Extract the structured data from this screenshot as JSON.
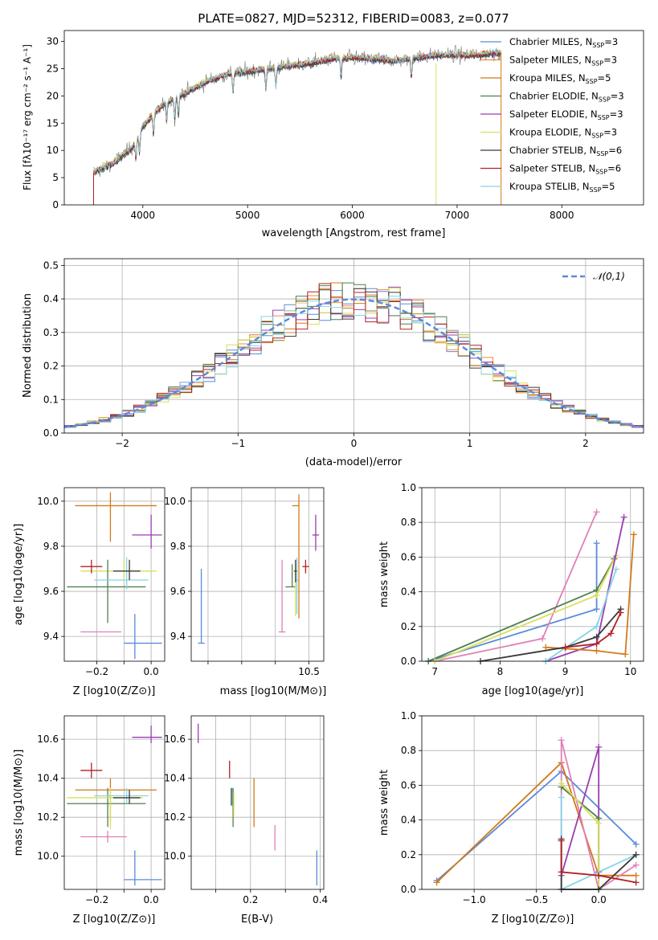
{
  "chart_data": [
    {
      "id": "spectrum",
      "type": "line",
      "title": "PLATE=0827, MJD=52312, FIBERID=0083, z=0.077",
      "xlabel": "wavelength [Angstrom, rest frame]",
      "ylabel": "Flux [fλ10⁻¹⁷ erg cm⁻² s⁻¹ A⁻¹]",
      "xlim": [
        3250,
        8780
      ],
      "ylim": [
        0,
        32
      ],
      "xticks": [
        4000,
        5000,
        6000,
        7000,
        8000
      ],
      "yticks": [
        0,
        5,
        10,
        15,
        20,
        25,
        30
      ],
      "legend_position": "top-right",
      "series": [
        {
          "name": "Chabrier MILES, N_SSP=3",
          "color": "#5b8bd9"
        },
        {
          "name": "Salpeter MILES, N_SSP=3",
          "color": "#f08a3a"
        },
        {
          "name": "Kroupa MILES, N_SSP=5",
          "color": "#d27a18"
        },
        {
          "name": "Chabrier ELODIE, N_SSP=3",
          "color": "#4f7f50"
        },
        {
          "name": "Salpeter ELODIE, N_SSP=3",
          "color": "#9a3db0"
        },
        {
          "name": "Kroupa ELODIE, N_SSP=3",
          "color": "#d9e05a"
        },
        {
          "name": "Chabrier STELIB, N_SSP=6",
          "color": "#3a3a3a"
        },
        {
          "name": "Salpeter STELIB, N_SSP=6",
          "color": "#b22222"
        },
        {
          "name": "Kroupa STELIB, N_SSP=5",
          "color": "#86d4e8"
        }
      ],
      "continuum": {
        "x": [
          3530,
          3700,
          3900,
          4000,
          4200,
          4400,
          4600,
          4800,
          5000,
          5200,
          5400,
          5600,
          5800,
          6000,
          6200,
          6400,
          6600,
          6800,
          7000,
          7200,
          7420
        ],
        "y": [
          6,
          7.5,
          10.5,
          14.5,
          18.5,
          20.5,
          22.5,
          24,
          24.5,
          25,
          25.5,
          26,
          26.8,
          27,
          26.8,
          26.5,
          27,
          27.5,
          27.5,
          27.5,
          28
        ]
      }
    },
    {
      "id": "residuals",
      "type": "histogram",
      "xlabel": "(data-model)/error",
      "ylabel": "Normed distribution",
      "xlim": [
        -2.5,
        2.5
      ],
      "ylim": [
        0,
        0.52
      ],
      "xticks": [
        -2,
        -1,
        0,
        1,
        2
      ],
      "yticks": [
        0.0,
        0.1,
        0.2,
        0.3,
        0.4,
        0.5
      ],
      "grid": true,
      "legend": "𝒩(0,1)",
      "legend_position": "top-right",
      "reference_curve": {
        "name": "normal",
        "mean": 0,
        "sigma": 1,
        "color": "#5b8bd9"
      },
      "bin_width": 0.1
    },
    {
      "id": "age-vs-Z",
      "type": "errorbar",
      "xlabel": "Z [log10(Z/Z⊙)]",
      "ylabel": "age  [log10(age/yr)]",
      "xlim": [
        -0.32,
        0.05
      ],
      "ylim": [
        9.29,
        10.06
      ],
      "xticks": [
        -0.2,
        -0.1,
        0.0
      ],
      "xtick_labels": [
        "−0.2",
        "",
        "0.0"
      ],
      "yticks": [
        9.4,
        9.6,
        9.8,
        10.0
      ],
      "grid": true,
      "points": [
        {
          "x": -0.06,
          "y": 9.37,
          "xerr": [
            0.04,
            0.1
          ],
          "yerr": [
            0.07,
            0.13
          ],
          "color": "#5b8bd9"
        },
        {
          "x": -0.1,
          "y": 9.69,
          "xerr": [
            0.16,
            0.12
          ],
          "yerr": [
            0.05,
            0.05
          ],
          "color": "#d9e05a"
        },
        {
          "x": -0.15,
          "y": 9.98,
          "xerr": [
            0.13,
            0.17
          ],
          "yerr": [
            0.16,
            0.06
          ],
          "color": "#d27a18"
        },
        {
          "x": -0.16,
          "y": 9.62,
          "xerr": [
            0.15,
            0.14
          ],
          "yerr": [
            0.16,
            0.12
          ],
          "color": "#4f7f50"
        },
        {
          "x": 0.0,
          "y": 9.85,
          "xerr": [
            0.07,
            0.04
          ],
          "yerr": [
            0.06,
            0.09
          ],
          "color": "#9a3db0"
        },
        {
          "x": -0.16,
          "y": 9.42,
          "xerr": [
            0.1,
            0.05
          ],
          "yerr": [
            0.0,
            0.0
          ],
          "color": "#e07fb8"
        },
        {
          "x": -0.22,
          "y": 9.71,
          "xerr": [
            0.04,
            0.04
          ],
          "yerr": [
            0.03,
            0.03
          ],
          "color": "#b22222"
        },
        {
          "x": -0.09,
          "y": 9.65,
          "xerr": [
            0.12,
            0.08
          ],
          "yerr": [
            0.04,
            0.1
          ],
          "color": "#86d4e8"
        },
        {
          "x": -0.08,
          "y": 9.69,
          "xerr": [
            0.06,
            0.04
          ],
          "yerr": [
            0.04,
            0.05
          ],
          "color": "#3a3a3a"
        }
      ]
    },
    {
      "id": "age-vs-mass",
      "type": "errorbar",
      "xlabel": "mass [log10(M/M⊙)]",
      "ylabel": "",
      "xlim": [
        8.75,
        10.72
      ],
      "ylim": [
        9.29,
        10.06
      ],
      "xticks": [
        9.0,
        9.5,
        10.0,
        10.5
      ],
      "xtick_labels": [
        "",
        "",
        "",
        "10.5"
      ],
      "yticks": [
        9.4,
        9.6,
        9.8,
        10.0
      ],
      "grid": true,
      "points": [
        {
          "x": 8.9,
          "y": 9.37,
          "xerr": [
            0.05,
            0.05
          ],
          "yerr": [
            0.0,
            0.33
          ],
          "color": "#5b8bd9"
        },
        {
          "x": 10.1,
          "y": 9.42,
          "xerr": [
            0.05,
            0.05
          ],
          "yerr": [
            0.0,
            0.32
          ],
          "color": "#e07fb8"
        },
        {
          "x": 10.25,
          "y": 9.62,
          "xerr": [
            0.1,
            0.05
          ],
          "yerr": [
            0.0,
            0.1
          ],
          "color": "#4f7f50"
        },
        {
          "x": 10.35,
          "y": 9.98,
          "xerr": [
            0.1,
            0.0
          ],
          "yerr": [
            0.5,
            0.05
          ],
          "color": "#d27a18"
        },
        {
          "x": 10.3,
          "y": 9.69,
          "xerr": [
            0.05,
            0.05
          ],
          "yerr": [
            0.2,
            0.03
          ],
          "color": "#d9e05a"
        },
        {
          "x": 10.32,
          "y": 9.65,
          "xerr": [
            0.02,
            0.02
          ],
          "yerr": [
            0.15,
            0.1
          ],
          "color": "#86d4e8"
        },
        {
          "x": 10.3,
          "y": 9.69,
          "xerr": [
            0.02,
            0.02
          ],
          "yerr": [
            0.05,
            0.05
          ],
          "color": "#3a3a3a"
        },
        {
          "x": 10.45,
          "y": 9.71,
          "xerr": [
            0.05,
            0.05
          ],
          "yerr": [
            0.03,
            0.03
          ],
          "color": "#b22222"
        },
        {
          "x": 10.6,
          "y": 9.85,
          "xerr": [
            0.05,
            0.05
          ],
          "yerr": [
            0.07,
            0.09
          ],
          "color": "#9a3db0"
        }
      ]
    },
    {
      "id": "weight-vs-age",
      "type": "line",
      "xlabel": "age  [log10(age/yr)]",
      "ylabel": "mass weight",
      "xlim": [
        6.8,
        10.2
      ],
      "ylim": [
        0,
        1
      ],
      "xticks": [
        7,
        8,
        9,
        10
      ],
      "yticks": [
        0.0,
        0.2,
        0.4,
        0.6,
        0.8,
        1.0
      ],
      "grid": true,
      "series": [
        {
          "color": "#5b8bd9",
          "x": [
            6.9,
            9.48,
            9.48
          ],
          "y": [
            0.0,
            0.3,
            0.68
          ]
        },
        {
          "color": "#e07fb8",
          "x": [
            7.0,
            8.65,
            9.48
          ],
          "y": [
            0.0,
            0.13,
            0.86
          ]
        },
        {
          "color": "#4f7f50",
          "x": [
            6.9,
            9.48,
            9.75
          ],
          "y": [
            0.0,
            0.41,
            0.59
          ]
        },
        {
          "color": "#d9e05a",
          "x": [
            7.0,
            9.48,
            9.78
          ],
          "y": [
            0.0,
            0.38,
            0.61
          ]
        },
        {
          "color": "#9a3db0",
          "x": [
            8.7,
            9.48,
            9.9
          ],
          "y": [
            0.0,
            0.1,
            0.83
          ]
        },
        {
          "color": "#86d4e8",
          "x": [
            8.7,
            9.48,
            9.78
          ],
          "y": [
            0.0,
            0.2,
            0.53
          ]
        },
        {
          "color": "#d27a18",
          "x": [
            8.7,
            9.48,
            9.92,
            10.05
          ],
          "y": [
            0.08,
            0.06,
            0.04,
            0.73
          ]
        },
        {
          "color": "#3a3a3a",
          "x": [
            7.7,
            9.0,
            9.48,
            9.85
          ],
          "y": [
            0.0,
            0.08,
            0.14,
            0.3
          ]
        },
        {
          "color": "#b22222",
          "x": [
            9.0,
            9.48,
            9.7,
            9.85
          ],
          "y": [
            0.08,
            0.1,
            0.16,
            0.28
          ]
        }
      ]
    },
    {
      "id": "mass-vs-Z",
      "type": "errorbar",
      "xlabel": "Z [log10(Z/Z⊙)]",
      "ylabel": "mass [log10(M/M⊙)]",
      "xlim": [
        -0.32,
        0.05
      ],
      "ylim": [
        9.83,
        10.72
      ],
      "xticks": [
        -0.2,
        -0.1,
        0.0
      ],
      "xtick_labels": [
        "−0.2",
        "",
        "0.0"
      ],
      "yticks": [
        10.0,
        10.2,
        10.4,
        10.6
      ],
      "grid": true,
      "points": [
        {
          "x": -0.06,
          "y": 9.88,
          "xerr": [
            0.04,
            0.1
          ],
          "yerr": [
            0.03,
            0.15
          ],
          "color": "#5b8bd9"
        },
        {
          "x": -0.16,
          "y": 10.1,
          "xerr": [
            0.1,
            0.07
          ],
          "yerr": [
            0.03,
            0.03
          ],
          "color": "#e07fb8"
        },
        {
          "x": -0.16,
          "y": 10.27,
          "xerr": [
            0.15,
            0.14
          ],
          "yerr": [
            0.12,
            0.08
          ],
          "color": "#4f7f50"
        },
        {
          "x": -0.15,
          "y": 10.34,
          "xerr": [
            0.13,
            0.17
          ],
          "yerr": [
            0.16,
            0.06
          ],
          "color": "#d27a18"
        },
        {
          "x": -0.15,
          "y": 10.3,
          "xerr": [
            0.16,
            0.12
          ],
          "yerr": [
            0.16,
            0.05
          ],
          "color": "#d9e05a"
        },
        {
          "x": -0.09,
          "y": 10.31,
          "xerr": [
            0.12,
            0.08
          ],
          "yerr": [
            0.04,
            0.04
          ],
          "color": "#86d4e8"
        },
        {
          "x": -0.08,
          "y": 10.3,
          "xerr": [
            0.06,
            0.04
          ],
          "yerr": [
            0.03,
            0.04
          ],
          "color": "#3a3a3a"
        },
        {
          "x": -0.22,
          "y": 10.44,
          "xerr": [
            0.04,
            0.04
          ],
          "yerr": [
            0.04,
            0.04
          ],
          "color": "#b22222"
        },
        {
          "x": 0.0,
          "y": 10.61,
          "xerr": [
            0.07,
            0.04
          ],
          "yerr": [
            0.03,
            0.06
          ],
          "color": "#9a3db0"
        }
      ]
    },
    {
      "id": "mass-vs-EBV",
      "type": "errorbar",
      "xlabel": "E(B-V)",
      "ylabel": "",
      "xlim": [
        0.03,
        0.41
      ],
      "ylim": [
        9.83,
        10.72
      ],
      "xticks": [
        0.1,
        0.2,
        0.3,
        0.4
      ],
      "xtick_labels": [
        "",
        "0.2",
        "",
        "0.4"
      ],
      "yticks": [
        10.0,
        10.2,
        10.4,
        10.6
      ],
      "grid": true,
      "points": [
        {
          "x": 0.05,
          "y": 10.63,
          "xerr": [
            0,
            0
          ],
          "yerr": [
            0.05,
            0.05
          ],
          "color": "#9a3db0"
        },
        {
          "x": 0.14,
          "y": 10.44,
          "xerr": [
            0,
            0
          ],
          "yerr": [
            0.04,
            0.05
          ],
          "color": "#b22222"
        },
        {
          "x": 0.145,
          "y": 10.3,
          "xerr": [
            0,
            0
          ],
          "yerr": [
            0.04,
            0.05
          ],
          "color": "#3a3a3a"
        },
        {
          "x": 0.148,
          "y": 10.3,
          "xerr": [
            0,
            0
          ],
          "yerr": [
            0.04,
            0.05
          ],
          "color": "#86d4e8"
        },
        {
          "x": 0.15,
          "y": 10.27,
          "xerr": [
            0,
            0
          ],
          "yerr": [
            0.12,
            0.08
          ],
          "color": "#4f7f50"
        },
        {
          "x": 0.152,
          "y": 10.3,
          "xerr": [
            0,
            0
          ],
          "yerr": [
            0.1,
            0.03
          ],
          "color": "#d9e05a"
        },
        {
          "x": 0.21,
          "y": 10.27,
          "xerr": [
            0,
            0
          ],
          "yerr": [
            0.12,
            0.13
          ],
          "color": "#d27a18"
        },
        {
          "x": 0.27,
          "y": 10.08,
          "xerr": [
            0,
            0
          ],
          "yerr": [
            0.05,
            0.08
          ],
          "color": "#e07fb8"
        },
        {
          "x": 0.39,
          "y": 9.95,
          "xerr": [
            0,
            0
          ],
          "yerr": [
            0.1,
            0.08
          ],
          "color": "#5b8bd9"
        }
      ]
    },
    {
      "id": "weight-vs-Z",
      "type": "line",
      "xlabel": "Z [log10(Z/Z⊙)]",
      "ylabel": "mass weight",
      "xlim": [
        -1.42,
        0.36
      ],
      "ylim": [
        0,
        1
      ],
      "xticks": [
        -1.0,
        -0.5,
        0.0
      ],
      "xtick_labels": [
        "−1.0",
        "−0.5",
        "0.0"
      ],
      "yticks": [
        0.0,
        0.2,
        0.4,
        0.6,
        0.8,
        1.0
      ],
      "grid": true,
      "series": [
        {
          "color": "#5b8bd9",
          "x": [
            -1.3,
            -0.3,
            0.3
          ],
          "y": [
            0.05,
            0.68,
            0.26
          ]
        },
        {
          "color": "#d27a18",
          "x": [
            -1.3,
            -0.3,
            0.0,
            0.3
          ],
          "y": [
            0.04,
            0.73,
            0.08,
            0.08
          ]
        },
        {
          "color": "#e07fb8",
          "x": [
            -0.3,
            -0.3,
            0.0,
            0.3
          ],
          "y": [
            0.0,
            0.86,
            0.0,
            0.14
          ]
        },
        {
          "color": "#9a3db0",
          "x": [
            -0.3,
            0.0,
            0.0
          ],
          "y": [
            0.08,
            0.82,
            0.1
          ]
        },
        {
          "color": "#4f7f50",
          "x": [
            -0.3,
            0.0,
            0.0
          ],
          "y": [
            0.59,
            0.41,
            0.0
          ]
        },
        {
          "color": "#d9e05a",
          "x": [
            -0.3,
            0.0,
            0.0
          ],
          "y": [
            0.61,
            0.38,
            0.0
          ]
        },
        {
          "color": "#86d4e8",
          "x": [
            -0.3,
            -0.3,
            0.3
          ],
          "y": [
            0.53,
            0.0,
            0.2
          ]
        },
        {
          "color": "#3a3a3a",
          "x": [
            -0.3,
            -0.3,
            0.0,
            0.3
          ],
          "y": [
            0.29,
            0.0,
            0.0,
            0.2
          ]
        },
        {
          "color": "#b22222",
          "x": [
            -0.3,
            -0.3,
            0.0,
            0.3
          ],
          "y": [
            0.28,
            0.1,
            0.08,
            0.04
          ]
        }
      ]
    }
  ]
}
